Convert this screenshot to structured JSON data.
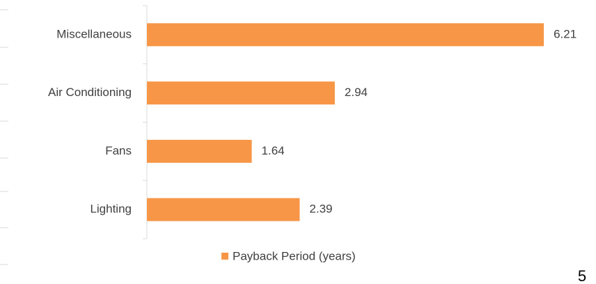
{
  "chart_data": {
    "type": "hbar",
    "categories": [
      "Miscellaneous",
      "Air Conditioning",
      "Fans",
      "Lighting"
    ],
    "series": [
      {
        "name": "Payback Period (years)",
        "color": "#f79646",
        "values": [
          6.21,
          2.94,
          1.64,
          2.39
        ]
      }
    ],
    "xlim": [
      0,
      7
    ],
    "legend": "bottom"
  },
  "page_number": "5"
}
